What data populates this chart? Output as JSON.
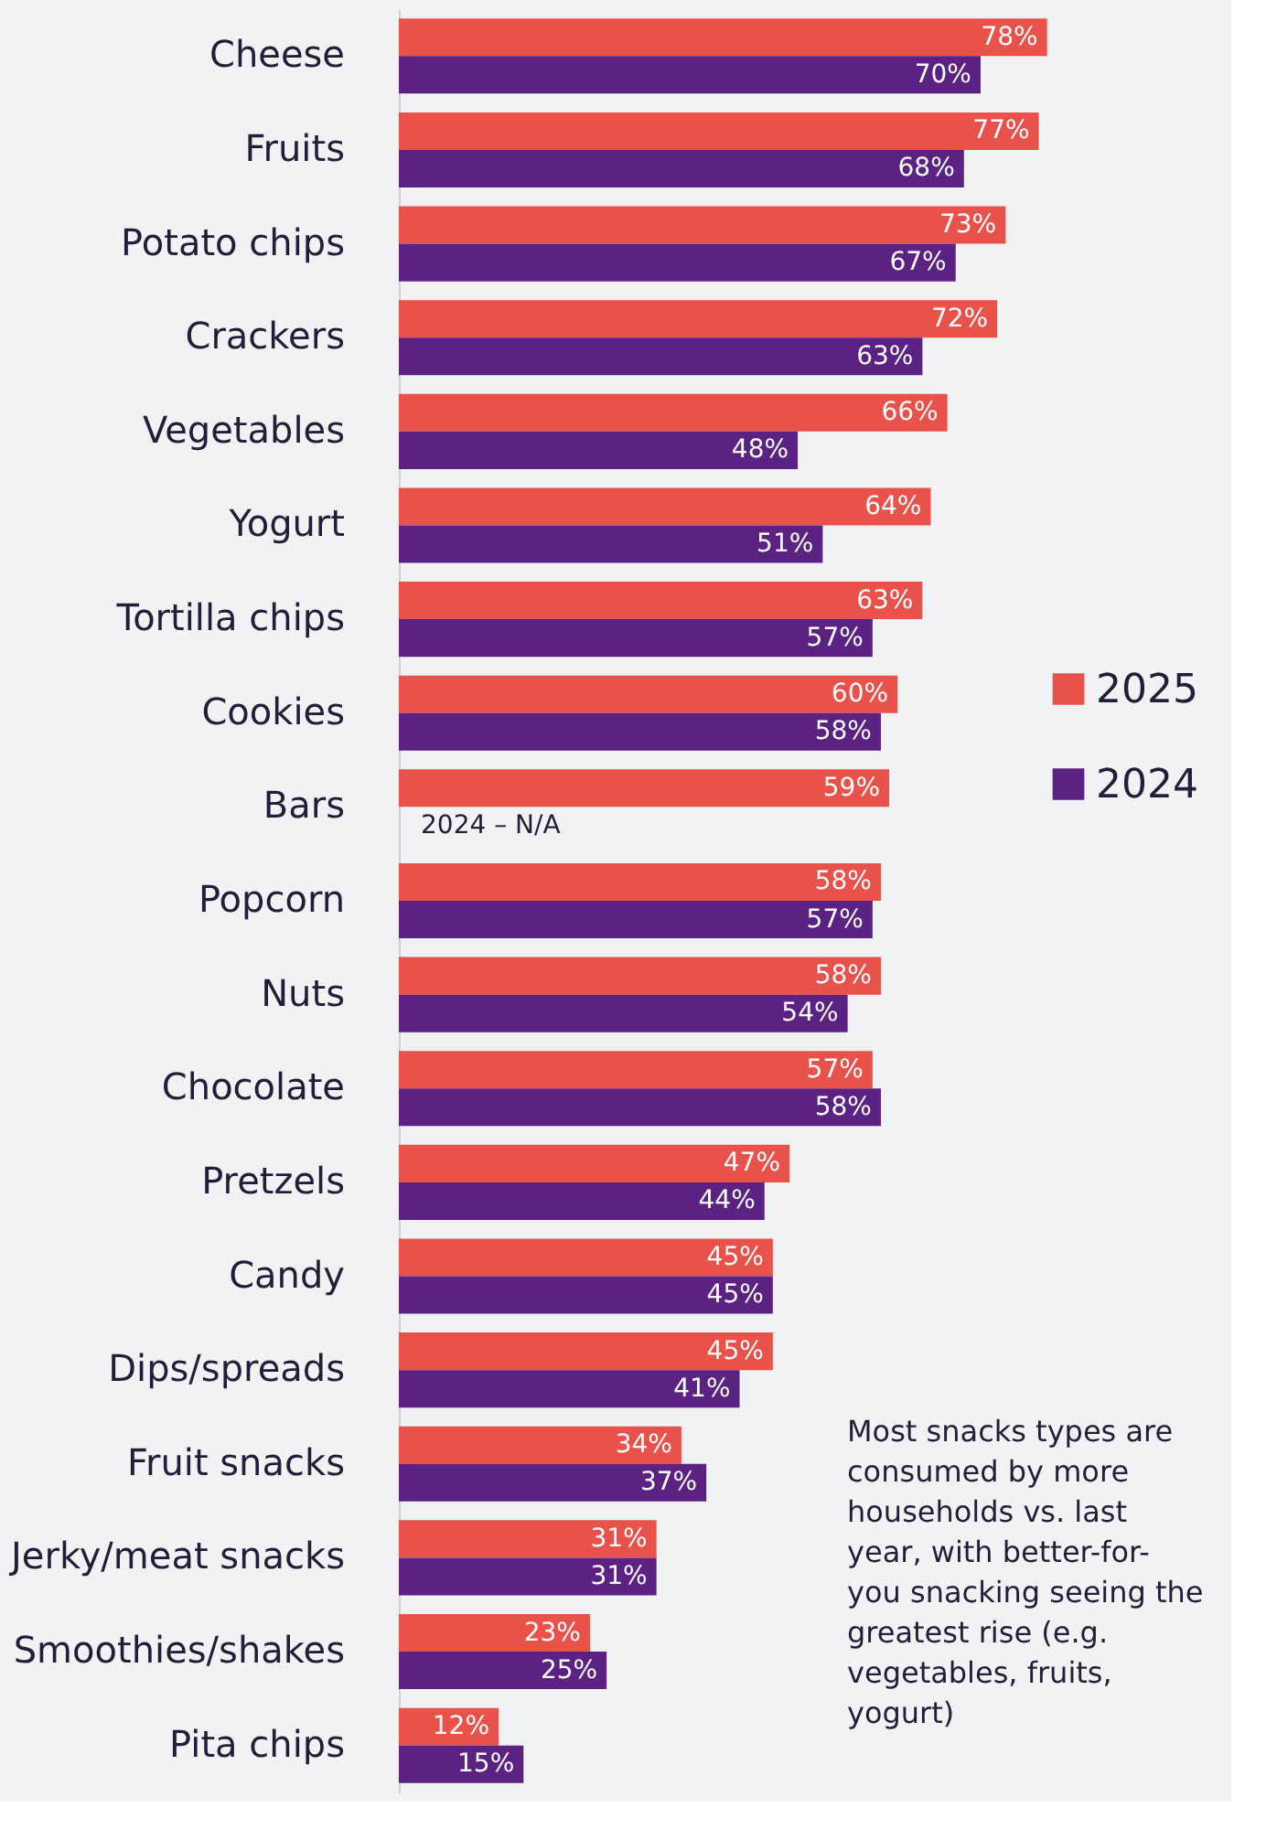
{
  "chart_data": {
    "type": "bar",
    "orientation": "horizontal",
    "legend": "right",
    "categories": [
      "Cheese",
      "Fruits",
      "Potato chips",
      "Crackers",
      "Vegetables",
      "Yogurt",
      "Tortilla chips",
      "Cookies",
      "Bars",
      "Popcorn",
      "Nuts",
      "Chocolate",
      "Pretzels",
      "Candy",
      "Dips/spreads",
      "Fruit snacks",
      "Jerky/meat snacks",
      "Smoothies/shakes",
      "Pita chips"
    ],
    "series": [
      {
        "name": "2025",
        "color": "#e8524a",
        "values": [
          78,
          77,
          73,
          72,
          66,
          64,
          63,
          60,
          59,
          58,
          58,
          57,
          47,
          45,
          45,
          34,
          31,
          23,
          12
        ],
        "value_labels": [
          "78%",
          "77%",
          "73%",
          "72%",
          "66%",
          "64%",
          "63%",
          "60%",
          "59%",
          "58%",
          "58%",
          "57%",
          "47%",
          "45%",
          "45%",
          "34%",
          "31%",
          "23%",
          "12%"
        ]
      },
      {
        "name": "2024",
        "color": "#5b2283",
        "values": [
          70,
          68,
          67,
          63,
          48,
          51,
          57,
          58,
          null,
          57,
          54,
          58,
          44,
          45,
          41,
          37,
          31,
          25,
          15
        ],
        "value_labels": [
          "70%",
          "68%",
          "67%",
          "63%",
          "48%",
          "51%",
          "57%",
          "58%",
          null,
          "57%",
          "54%",
          "58%",
          "44%",
          "45%",
          "41%",
          "37%",
          "31%",
          "25%",
          "15%"
        ]
      }
    ],
    "annotations": [
      {
        "text": "2024 – N/A",
        "x": 0,
        "y": "Bars"
      },
      "Most snacks types are consumed by more households vs. last year, with better-for-you snacking seeing the greatest rise (e.g. vegetables, fruits, yogurt)"
    ]
  }
}
